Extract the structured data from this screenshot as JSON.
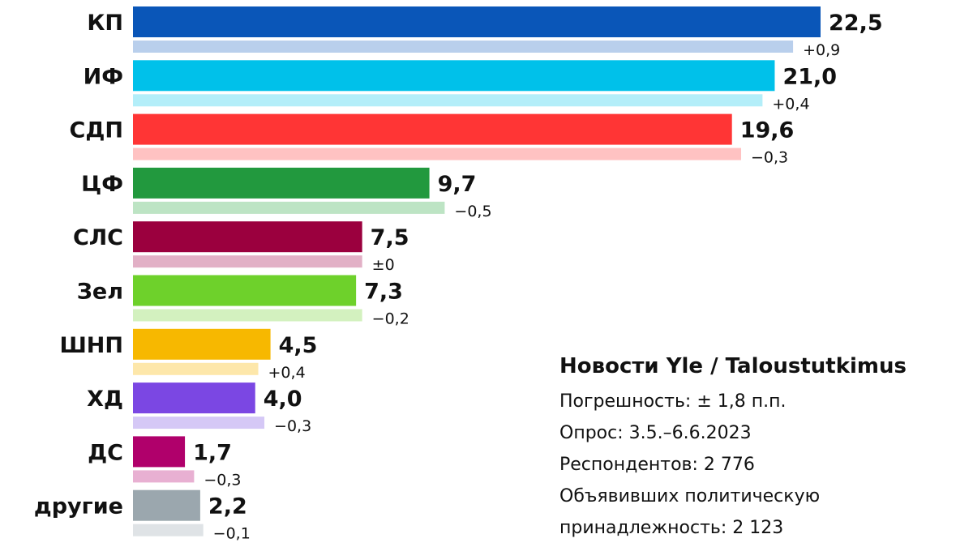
{
  "chart_data": {
    "type": "bar",
    "orientation": "horizontal",
    "categories": [
      "КП",
      "ИФ",
      "СДП",
      "ЦФ",
      "СЛС",
      "Зел",
      "ШНП",
      "ХД",
      "ДС",
      "другие"
    ],
    "value_labels": [
      "22,5",
      "21,0",
      "19,6",
      "9,7",
      "7,5",
      "7,3",
      "4,5",
      "4,0",
      "1,7",
      "2,2"
    ],
    "change_labels": [
      "+0,9",
      "+0,4",
      "−0,3",
      "−0,5",
      "±0",
      "−0,2",
      "+0,4",
      "−0,3",
      "−0,3",
      "−0,1"
    ],
    "series": [
      {
        "values": [
          22.5,
          21.0,
          19.6,
          9.7,
          7.5,
          7.3,
          4.5,
          4.0,
          1.7,
          2.2
        ],
        "colors": [
          "#0a56b8",
          "#00c1ea",
          "#ff3535",
          "#22993e",
          "#9b003e",
          "#6ed12b",
          "#f7b800",
          "#7b47e3",
          "#b0006b",
          "#9ba7ae"
        ]
      },
      {
        "values": [
          21.6,
          20.6,
          19.9,
          10.2,
          7.5,
          7.5,
          4.1,
          4.3,
          2.0,
          2.3
        ],
        "colors": [
          "#b9cfec",
          "#b3eef9",
          "#ffc2c2",
          "#bde4c4",
          "#e2b0c6",
          "#d3f1bf",
          "#fde7aa",
          "#d5c8f6",
          "#e8b0d2",
          "#dfe3e6"
        ]
      }
    ],
    "legend": "none",
    "grid": false
  },
  "info": {
    "title": "Новости Yle / Taloustutkimus",
    "lines": [
      "Погрешность: ± 1,8 п.п.",
      "Опрос: 3.5.–6.6.2023",
      "Респондентов: 2 776",
      "Объявивших политическую",
      "принадлежность: 2 123"
    ]
  }
}
